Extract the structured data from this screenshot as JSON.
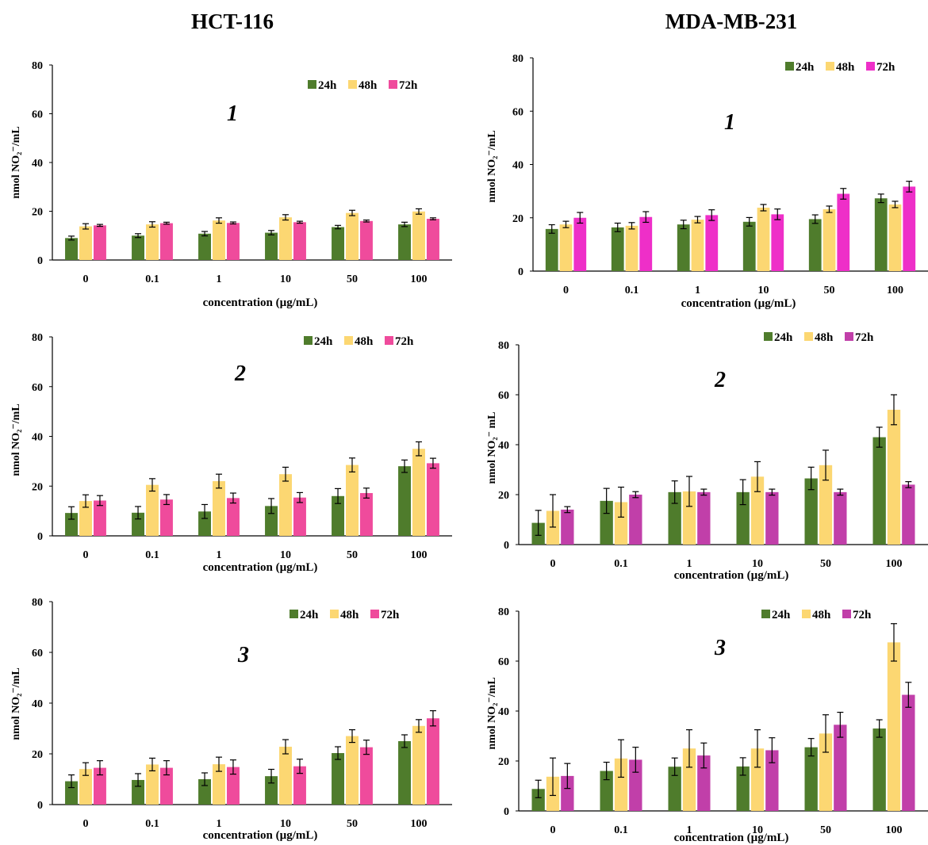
{
  "columns": {
    "left_title": "HCT-116",
    "right_title": "MDA-MB-231"
  },
  "chart_data": [
    {
      "type": "bar",
      "cell_line": "HCT-116",
      "panel_label": "1",
      "categories": [
        "0",
        "0.1",
        "1",
        "10",
        "50",
        "100"
      ],
      "series": [
        {
          "name": "24h",
          "color": "#4f7c2c",
          "values": [
            9,
            10,
            10.8,
            11.2,
            13.5,
            14.6
          ],
          "errors": [
            0.8,
            0.8,
            0.9,
            0.9,
            0.7,
            0.9
          ]
        },
        {
          "name": "48h",
          "color": "#fcd772",
          "values": [
            13.8,
            14.6,
            16.2,
            17.5,
            19.3,
            19.9
          ],
          "errors": [
            1.1,
            1.1,
            1.1,
            1.1,
            1.1,
            1.1
          ]
        },
        {
          "name": "72h",
          "color": "#ef4b9c",
          "values": [
            14.2,
            15.1,
            15.2,
            15.5,
            16,
            16.9
          ],
          "errors": [
            0.4,
            0.4,
            0.4,
            0.4,
            0.4,
            0.4
          ]
        }
      ],
      "xlabel": "concentration (µg/mL)",
      "ylabel": "nmol NO₂⁻/mL",
      "ylim": [
        0,
        80
      ],
      "yticks": [
        "0",
        "20",
        "40",
        "60",
        "80"
      ],
      "grid": false,
      "legend": "top-right"
    },
    {
      "type": "bar",
      "cell_line": "HCT-116",
      "panel_label": "2",
      "categories": [
        "0",
        "0.1",
        "1",
        "10",
        "50",
        "100"
      ],
      "series": [
        {
          "name": "24h",
          "color": "#4f7c2c",
          "values": [
            9.2,
            9.3,
            9.8,
            12,
            16,
            28
          ],
          "errors": [
            2.5,
            2.5,
            2.8,
            3,
            3,
            2.5
          ]
        },
        {
          "name": "48h",
          "color": "#fcd772",
          "values": [
            14,
            20.5,
            22,
            24.8,
            28.5,
            35
          ],
          "errors": [
            2.5,
            2.5,
            2.8,
            2.8,
            2.8,
            2.8
          ]
        },
        {
          "name": "72h",
          "color": "#ef4b9c",
          "values": [
            14.2,
            14.6,
            15.2,
            15.4,
            17.2,
            29.2
          ],
          "errors": [
            2,
            2,
            2,
            2,
            2,
            2
          ]
        }
      ],
      "xlabel": "concentration (µg/mL)",
      "ylabel": "nmol NO₂⁻/mL",
      "ylim": [
        0,
        80
      ],
      "yticks": [
        "0",
        "20",
        "40",
        "60",
        "80"
      ],
      "grid": false,
      "legend": "top-right"
    },
    {
      "type": "bar",
      "cell_line": "HCT-116",
      "panel_label": "3",
      "categories": [
        "0",
        "0.1",
        "1",
        "10",
        "50",
        "100"
      ],
      "series": [
        {
          "name": "24h",
          "color": "#4f7c2c",
          "values": [
            9.2,
            9.7,
            10,
            11.2,
            20.3,
            25
          ],
          "errors": [
            2.5,
            2.5,
            2.5,
            2.7,
            2.5,
            2.5
          ]
        },
        {
          "name": "48h",
          "color": "#fcd772",
          "values": [
            14,
            15.8,
            15.9,
            22.8,
            27,
            31
          ],
          "errors": [
            2.5,
            2.5,
            2.8,
            2.8,
            2.5,
            2.5
          ]
        },
        {
          "name": "72h",
          "color": "#ef4b9c",
          "values": [
            14.5,
            14.5,
            14.8,
            15.1,
            22.6,
            34
          ],
          "errors": [
            2.8,
            2.8,
            2.8,
            2.8,
            2.8,
            3
          ]
        }
      ],
      "xlabel": "concentration (µg/mL)",
      "ylabel": "nmol NO₂⁻/mL",
      "ylim": [
        0,
        80
      ],
      "yticks": [
        "0",
        "20",
        "40",
        "60",
        "80"
      ],
      "grid": false,
      "legend": "top-right"
    },
    {
      "type": "bar",
      "cell_line": "MDA-MB-231",
      "panel_label": "1",
      "categories": [
        "0",
        "0.1",
        "1",
        "10",
        "50",
        "100"
      ],
      "series": [
        {
          "name": "24h",
          "color": "#4f7c2c",
          "values": [
            15.8,
            16.4,
            17.5,
            18.5,
            19.5,
            27.3
          ],
          "errors": [
            1.6,
            1.6,
            1.6,
            1.6,
            1.6,
            1.6
          ]
        },
        {
          "name": "48h",
          "color": "#fcd772",
          "values": [
            17.5,
            17,
            19.3,
            23.8,
            23.2,
            25
          ],
          "errors": [
            1.2,
            1.2,
            1.2,
            1.2,
            1.2,
            1.2
          ]
        },
        {
          "name": "72h",
          "color": "#ee2fc8",
          "values": [
            20,
            20.3,
            21,
            21.3,
            29,
            31.7
          ],
          "errors": [
            2,
            2,
            2,
            2,
            2,
            2
          ]
        }
      ],
      "xlabel": "concentration (µg/mL)",
      "ylabel": "nmol NO₂⁻/mL",
      "ylim": [
        0,
        80
      ],
      "yticks": [
        "0",
        "20",
        "40",
        "60",
        "80"
      ],
      "grid": false,
      "legend": "top-right"
    },
    {
      "type": "bar",
      "cell_line": "MDA-MB-231",
      "panel_label": "2",
      "categories": [
        "0",
        "0.1",
        "1",
        "10",
        "50",
        "100"
      ],
      "series": [
        {
          "name": "24h",
          "color": "#4f7c2c",
          "values": [
            8.7,
            17.5,
            21,
            21,
            26.5,
            43
          ],
          "errors": [
            5,
            5,
            4.5,
            5,
            4.5,
            4
          ]
        },
        {
          "name": "48h",
          "color": "#fcd772",
          "values": [
            13.5,
            17,
            21.3,
            27.2,
            31.8,
            54
          ],
          "errors": [
            6.5,
            6,
            6,
            6,
            6,
            6
          ]
        },
        {
          "name": "72h",
          "color": "#c13fa9",
          "values": [
            14,
            20,
            21,
            21,
            21,
            24
          ],
          "errors": [
            1.2,
            1.2,
            1.2,
            1.2,
            1.2,
            1.2
          ]
        }
      ],
      "xlabel": "concentration (µg/mL)",
      "ylabel": "nmol NO₂⁻ mL",
      "ylim": [
        0,
        80
      ],
      "yticks": [
        "0",
        "20",
        "40",
        "60",
        "80"
      ],
      "grid": false,
      "legend": "top-right"
    },
    {
      "type": "bar",
      "cell_line": "MDA-MB-231",
      "panel_label": "3",
      "categories": [
        "0",
        "0.1",
        "1",
        "10",
        "50",
        "100"
      ],
      "series": [
        {
          "name": "24h",
          "color": "#4f7c2c",
          "values": [
            8.8,
            16,
            17.7,
            17.8,
            25.5,
            33
          ],
          "errors": [
            3.5,
            3.5,
            3.5,
            3.5,
            3.5,
            3.5
          ]
        },
        {
          "name": "48h",
          "color": "#fcd772",
          "values": [
            13.7,
            21,
            25,
            25,
            31,
            67.5
          ],
          "errors": [
            7.5,
            7.5,
            7.5,
            7.5,
            7.5,
            7.5
          ]
        },
        {
          "name": "72h",
          "color": "#c13fa9",
          "values": [
            14,
            20.5,
            22.2,
            24.3,
            34.5,
            46.5
          ],
          "errors": [
            5,
            5,
            5,
            5,
            5,
            5
          ]
        }
      ],
      "xlabel": "concentration (µg/mL)",
      "ylabel": "nmol NO₂⁻/mL",
      "ylim": [
        0,
        80
      ],
      "yticks": [
        "0",
        "20",
        "40",
        "60",
        "80"
      ],
      "grid": false,
      "legend": "top-right"
    }
  ]
}
